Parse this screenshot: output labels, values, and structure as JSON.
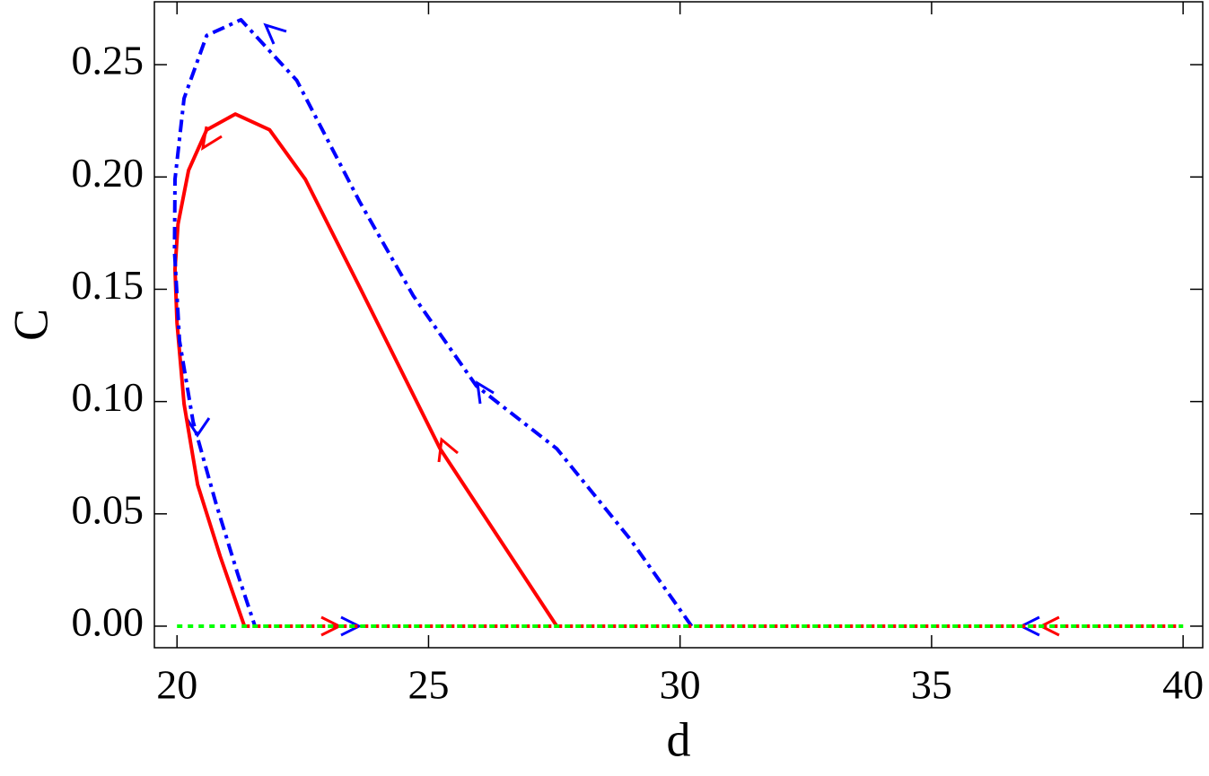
{
  "chart_data": {
    "type": "line",
    "x_label": "d",
    "y_label": "C",
    "xlim": [
      19.55,
      40.39
    ],
    "ylim": [
      -0.0096,
      0.278
    ],
    "xticks": [
      20,
      25,
      30,
      35,
      40
    ],
    "yticks": [
      {
        "value": 0,
        "label": "0.00"
      },
      {
        "value": 0.05,
        "label": "0.05"
      },
      {
        "value": 0.1,
        "label": "0.10"
      },
      {
        "value": 0.15,
        "label": "0.15"
      },
      {
        "value": 0.2,
        "label": "0.20"
      },
      {
        "value": 0.25,
        "label": "0.25"
      }
    ],
    "grid": false,
    "series": [
      {
        "color": "#ff0000",
        "style": "solid",
        "x": [
          27.55,
          25.23,
          23.63,
          22.55,
          21.84,
          21.16,
          20.59,
          20.23,
          20.02,
          19.96,
          20.0,
          20.14,
          20.41,
          20.86,
          21.34
        ],
        "values": [
          0,
          0.079,
          0.151,
          0.199,
          0.221,
          0.228,
          0.221,
          0.203,
          0.179,
          0.159,
          0.135,
          0.099,
          0.063,
          0.031,
          0
        ]
      },
      {
        "color": "#0000ff",
        "style": "dashdot",
        "x": [
          30.23,
          29.0,
          27.55,
          25.95,
          24.7,
          23.63,
          22.38,
          21.27,
          20.59,
          20.14,
          19.96,
          19.95,
          20.05,
          20.32,
          20.77,
          21.21,
          21.55
        ],
        "values": [
          0,
          0.039,
          0.079,
          0.107,
          0.147,
          0.189,
          0.243,
          0.27,
          0.263,
          0.235,
          0.199,
          0.167,
          0.127,
          0.091,
          0.055,
          0.023,
          0
        ]
      },
      {
        "color": "#ff0000",
        "style": "dotted",
        "x": [
          21.34,
          40
        ],
        "values": [
          0,
          0
        ]
      },
      {
        "color": "#00ff00",
        "style": "dotted",
        "x": [
          20,
          40
        ],
        "values": [
          0,
          0
        ]
      }
    ]
  }
}
